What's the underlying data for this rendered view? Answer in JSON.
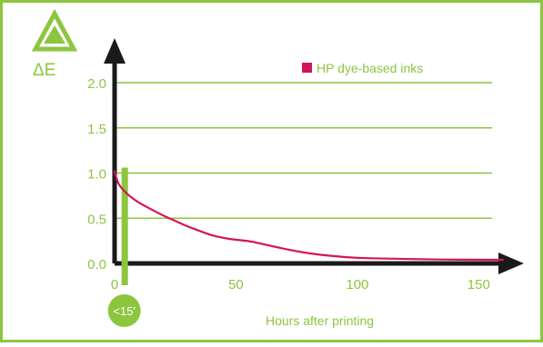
{
  "chart_data": {
    "type": "line",
    "ylabel": "ΔE",
    "xlabel": "Hours after printing",
    "x_ticks": [
      0,
      50,
      100,
      150
    ],
    "y_ticks": [
      0.0,
      0.5,
      1.0,
      1.5,
      2.0
    ],
    "x_tick_labels": [
      "0",
      "50",
      "100",
      "150"
    ],
    "y_tick_labels": [
      "0.0",
      "0.5",
      "1.0",
      "1.5",
      "2.0"
    ],
    "xlim": [
      0,
      160
    ],
    "ylim": [
      0,
      2.0
    ],
    "grid": "horizontal",
    "legend_position": "top-right",
    "series": [
      {
        "name": "HP dye-based inks",
        "color": "#d4145a",
        "x": [
          0,
          1,
          2,
          4,
          6,
          8,
          10,
          15,
          20,
          25,
          30,
          35,
          40,
          45,
          50,
          55,
          60,
          70,
          80,
          90,
          100,
          110,
          120,
          130,
          140,
          150,
          160
        ],
        "y": [
          1.02,
          0.92,
          0.86,
          0.8,
          0.75,
          0.71,
          0.67,
          0.6,
          0.53,
          0.47,
          0.41,
          0.36,
          0.31,
          0.28,
          0.26,
          0.25,
          0.22,
          0.16,
          0.11,
          0.08,
          0.06,
          0.055,
          0.05,
          0.045,
          0.042,
          0.04,
          0.04
        ]
      }
    ],
    "highlight": {
      "x": 4,
      "y_top": 1.02,
      "label": "<15'",
      "color": "#8cc63f"
    }
  },
  "colors": {
    "accent": "#8cc63f",
    "border": "#8cc63f",
    "axis": "#1a1a1a",
    "grid": "#8cc63f",
    "tick_text": "#8cc63f"
  },
  "icons": {
    "delta_symbol": "triangle-icon"
  }
}
